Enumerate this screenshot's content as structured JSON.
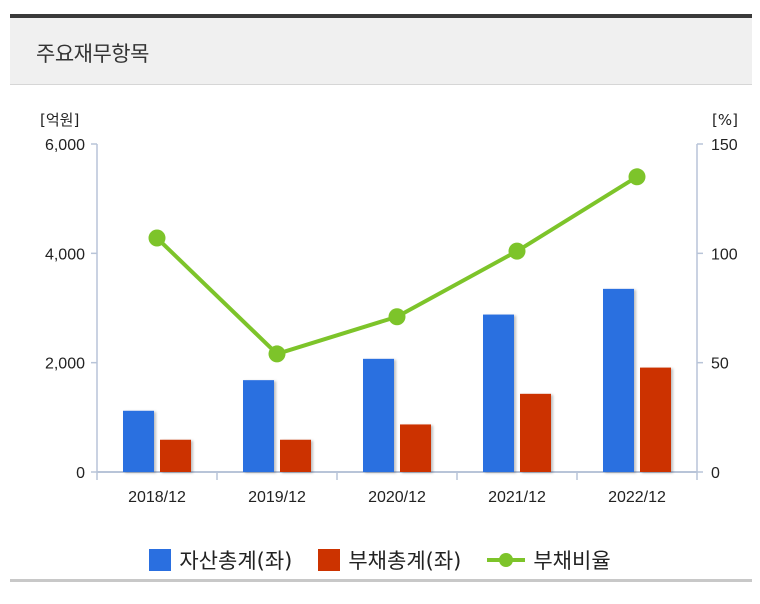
{
  "header": {
    "title": "주요재무항목"
  },
  "colors": {
    "assets": "#2a6fe0",
    "liabilities": "#cc3300",
    "ratio": "#7dc42a",
    "axis": "#b8c4d8"
  },
  "chart_data": {
    "type": "bar+line",
    "title": "주요재무항목",
    "categories": [
      "2018/12",
      "2019/12",
      "2020/12",
      "2021/12",
      "2022/12"
    ],
    "series": [
      {
        "name": "자산총계(좌)",
        "type": "bar",
        "axis": "left",
        "values": [
          1120,
          1680,
          2070,
          2880,
          3350
        ]
      },
      {
        "name": "부채총계(좌)",
        "type": "bar",
        "axis": "left",
        "values": [
          590,
          590,
          870,
          1430,
          1910
        ]
      },
      {
        "name": "부채비율",
        "type": "line",
        "axis": "right",
        "values": [
          107,
          54,
          71,
          101,
          135
        ]
      }
    ],
    "left_axis": {
      "unit": "[억원]",
      "ylim": [
        0,
        6000
      ],
      "ticks": [
        0,
        2000,
        4000,
        6000
      ],
      "tick_labels": [
        "0",
        "2,000",
        "4,000",
        "6,000"
      ]
    },
    "right_axis": {
      "unit": "[%]",
      "ylim": [
        0,
        150
      ],
      "ticks": [
        0,
        50,
        100,
        150
      ],
      "tick_labels": [
        "0",
        "50",
        "100",
        "150"
      ]
    },
    "legend_position": "bottom",
    "grid": false
  }
}
